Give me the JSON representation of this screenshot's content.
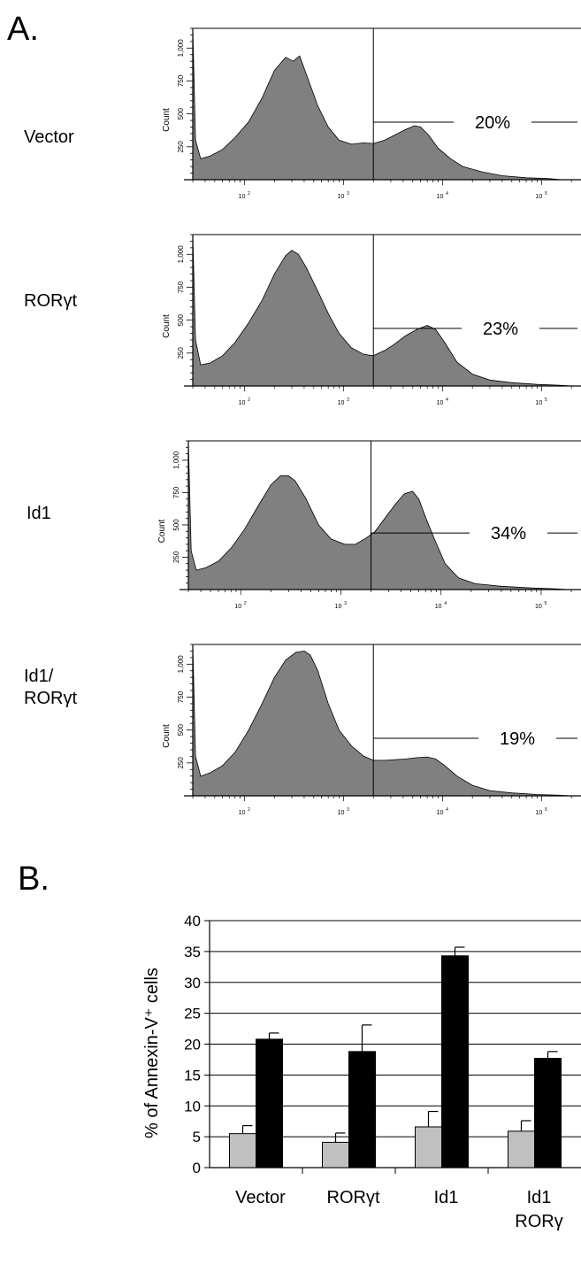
{
  "panels": {
    "a": "A.",
    "b": "B."
  },
  "histograms": {
    "ylabel": "Count",
    "y_ticks": [
      "1,000",
      "750",
      "500",
      "250"
    ],
    "x_ticks": [
      "10",
      "10",
      "10",
      "10"
    ],
    "x_tick_exps": [
      "2",
      "3",
      "4",
      "5"
    ],
    "rows": [
      {
        "label": "Vector",
        "label2": "",
        "percent": "20%"
      },
      {
        "label": "RORγt",
        "label2": "",
        "percent": "23%"
      },
      {
        "label": "Id1",
        "label2": "",
        "percent": "34%"
      },
      {
        "label": "Id1/",
        "label2": "RORγt",
        "percent": "19%"
      }
    ]
  },
  "chart_data": [
    {
      "type": "area",
      "title": "Vector",
      "xlabel": "",
      "ylabel": "Count",
      "x_scale": "log",
      "xlim": [
        30,
        250000
      ],
      "ylim": [
        0,
        1150
      ],
      "x": [
        30,
        32,
        36,
        45,
        60,
        80,
        110,
        150,
        200,
        260,
        310,
        360,
        430,
        550,
        700,
        900,
        1200,
        1600,
        2000,
        2600,
        3300,
        4200,
        5200,
        6000,
        7200,
        9000,
        12000,
        16000,
        25000,
        40000,
        70000,
        120000,
        160000
      ],
      "y": [
        1150,
        300,
        160,
        180,
        230,
        320,
        440,
        620,
        830,
        930,
        900,
        940,
        780,
        560,
        400,
        300,
        270,
        280,
        275,
        300,
        340,
        380,
        410,
        400,
        340,
        240,
        160,
        100,
        60,
        30,
        15,
        8,
        0
      ],
      "gate_threshold": 2000,
      "annotation": "20%"
    },
    {
      "type": "area",
      "title": "RORγt",
      "xlabel": "",
      "ylabel": "Count",
      "x_scale": "log",
      "xlim": [
        30,
        250000
      ],
      "ylim": [
        0,
        1150
      ],
      "x": [
        30,
        32,
        36,
        45,
        60,
        80,
        110,
        150,
        200,
        260,
        300,
        350,
        420,
        550,
        700,
        900,
        1200,
        1600,
        2000,
        2600,
        3300,
        4200,
        5500,
        7000,
        8500,
        10500,
        14000,
        20000,
        30000,
        50000,
        90000,
        150000,
        200000
      ],
      "y": [
        1150,
        350,
        160,
        175,
        230,
        330,
        480,
        650,
        850,
        990,
        1030,
        1000,
        900,
        720,
        550,
        400,
        290,
        240,
        230,
        270,
        320,
        380,
        430,
        460,
        430,
        330,
        180,
        90,
        45,
        25,
        12,
        6,
        0
      ],
      "gate_threshold": 2000,
      "annotation": "23%"
    },
    {
      "type": "area",
      "title": "Id1",
      "xlabel": "",
      "ylabel": "Count",
      "x_scale": "log",
      "xlim": [
        30,
        250000
      ],
      "ylim": [
        0,
        1150
      ],
      "x": [
        30,
        32,
        36,
        45,
        60,
        80,
        110,
        150,
        200,
        250,
        300,
        350,
        450,
        600,
        800,
        1100,
        1400,
        1800,
        2200,
        2800,
        3500,
        4300,
        5200,
        6000,
        7000,
        8500,
        11000,
        15000,
        22000,
        40000,
        80000,
        140000,
        180000
      ],
      "y": [
        1150,
        300,
        150,
        170,
        220,
        320,
        470,
        650,
        810,
        880,
        880,
        840,
        700,
        500,
        390,
        350,
        350,
        400,
        450,
        560,
        660,
        740,
        760,
        700,
        560,
        400,
        200,
        90,
        45,
        25,
        12,
        6,
        0
      ],
      "gate_threshold": 2000,
      "annotation": "34%"
    },
    {
      "type": "area",
      "title": "Id1/RORγt",
      "xlabel": "",
      "ylabel": "Count",
      "x_scale": "log",
      "xlim": [
        30,
        250000
      ],
      "ylim": [
        0,
        1150
      ],
      "x": [
        30,
        32,
        36,
        45,
        60,
        80,
        110,
        150,
        200,
        260,
        330,
        400,
        460,
        550,
        700,
        900,
        1200,
        1600,
        2000,
        2600,
        3300,
        4200,
        5500,
        7000,
        8500,
        10500,
        14000,
        20000,
        30000,
        50000,
        90000,
        150000,
        200000
      ],
      "y": [
        1150,
        300,
        150,
        175,
        230,
        330,
        500,
        700,
        900,
        1030,
        1090,
        1100,
        1070,
        950,
        700,
        500,
        380,
        300,
        270,
        270,
        275,
        280,
        290,
        295,
        280,
        230,
        150,
        80,
        40,
        22,
        10,
        5,
        0
      ],
      "gate_threshold": 2000,
      "annotation": "19%"
    },
    {
      "type": "bar",
      "title": "",
      "categories": [
        "Vector",
        "RORγt",
        "Id1",
        "Id1 RORγ"
      ],
      "category_lines": [
        [
          "Vector"
        ],
        [
          "RORγt"
        ],
        [
          "Id1"
        ],
        [
          "Id1",
          "RORγ"
        ]
      ],
      "series": [
        {
          "color": "#c0c0c0",
          "values": [
            5.5,
            4.1,
            6.6,
            5.9
          ],
          "errors": [
            1.3,
            1.5,
            2.5,
            1.7
          ]
        },
        {
          "color": "#000000",
          "values": [
            20.8,
            18.8,
            34.3,
            17.7
          ],
          "errors": [
            1.0,
            4.3,
            1.4,
            1.1
          ]
        }
      ],
      "xlabel": "",
      "ylabel": "% of Annexin-V⁺ cells",
      "ylim": [
        0,
        40
      ],
      "yticks": [
        0,
        5,
        10,
        15,
        20,
        25,
        30,
        35,
        40
      ],
      "grid": true
    }
  ]
}
